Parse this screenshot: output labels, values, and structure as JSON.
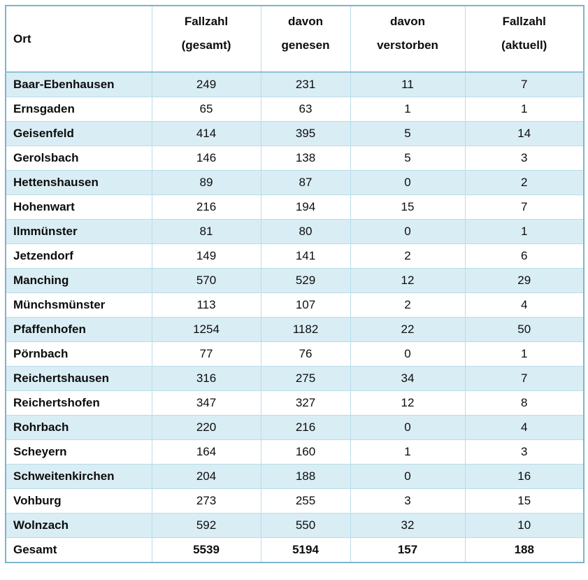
{
  "colors": {
    "stripe": "#d9edf4",
    "border_outer": "#7cb5c9",
    "border_inner": "#b9dde9",
    "header_divider": "#8fc2d5",
    "text": "#0d0d0d",
    "page_bg": "#ffffff"
  },
  "table": {
    "header": {
      "ort": "Ort",
      "columns": [
        {
          "line1": "Fallzahl",
          "line2": "(gesamt)"
        },
        {
          "line1": "davon",
          "line2": "genesen"
        },
        {
          "line1": "davon",
          "line2": "verstorben"
        },
        {
          "line1": "Fallzahl",
          "line2": "(aktuell)"
        }
      ]
    },
    "rows": [
      {
        "ort": "Baar-Ebenhausen",
        "gesamt": 249,
        "genesen": 231,
        "verstorben": 11,
        "aktuell": 7
      },
      {
        "ort": "Ernsgaden",
        "gesamt": 65,
        "genesen": 63,
        "verstorben": 1,
        "aktuell": 1
      },
      {
        "ort": "Geisenfeld",
        "gesamt": 414,
        "genesen": 395,
        "verstorben": 5,
        "aktuell": 14
      },
      {
        "ort": "Gerolsbach",
        "gesamt": 146,
        "genesen": 138,
        "verstorben": 5,
        "aktuell": 3
      },
      {
        "ort": "Hettenshausen",
        "gesamt": 89,
        "genesen": 87,
        "verstorben": 0,
        "aktuell": 2
      },
      {
        "ort": "Hohenwart",
        "gesamt": 216,
        "genesen": 194,
        "verstorben": 15,
        "aktuell": 7
      },
      {
        "ort": "Ilmmünster",
        "gesamt": 81,
        "genesen": 80,
        "verstorben": 0,
        "aktuell": 1
      },
      {
        "ort": "Jetzendorf",
        "gesamt": 149,
        "genesen": 141,
        "verstorben": 2,
        "aktuell": 6
      },
      {
        "ort": "Manching",
        "gesamt": 570,
        "genesen": 529,
        "verstorben": 12,
        "aktuell": 29
      },
      {
        "ort": "Münchsmünster",
        "gesamt": 113,
        "genesen": 107,
        "verstorben": 2,
        "aktuell": 4
      },
      {
        "ort": "Pfaffenhofen",
        "gesamt": 1254,
        "genesen": 1182,
        "verstorben": 22,
        "aktuell": 50
      },
      {
        "ort": "Pörnbach",
        "gesamt": 77,
        "genesen": 76,
        "verstorben": 0,
        "aktuell": 1
      },
      {
        "ort": "Reichertshausen",
        "gesamt": 316,
        "genesen": 275,
        "verstorben": 34,
        "aktuell": 7
      },
      {
        "ort": "Reichertshofen",
        "gesamt": 347,
        "genesen": 327,
        "verstorben": 12,
        "aktuell": 8
      },
      {
        "ort": "Rohrbach",
        "gesamt": 220,
        "genesen": 216,
        "verstorben": 0,
        "aktuell": 4
      },
      {
        "ort": "Scheyern",
        "gesamt": 164,
        "genesen": 160,
        "verstorben": 1,
        "aktuell": 3
      },
      {
        "ort": "Schweitenkirchen",
        "gesamt": 204,
        "genesen": 188,
        "verstorben": 0,
        "aktuell": 16
      },
      {
        "ort": "Vohburg",
        "gesamt": 273,
        "genesen": 255,
        "verstorben": 3,
        "aktuell": 15
      },
      {
        "ort": "Wolnzach",
        "gesamt": 592,
        "genesen": 550,
        "verstorben": 32,
        "aktuell": 10
      }
    ],
    "total": {
      "ort": "Gesamt",
      "gesamt": 5539,
      "genesen": 5194,
      "verstorben": 157,
      "aktuell": 188
    }
  }
}
